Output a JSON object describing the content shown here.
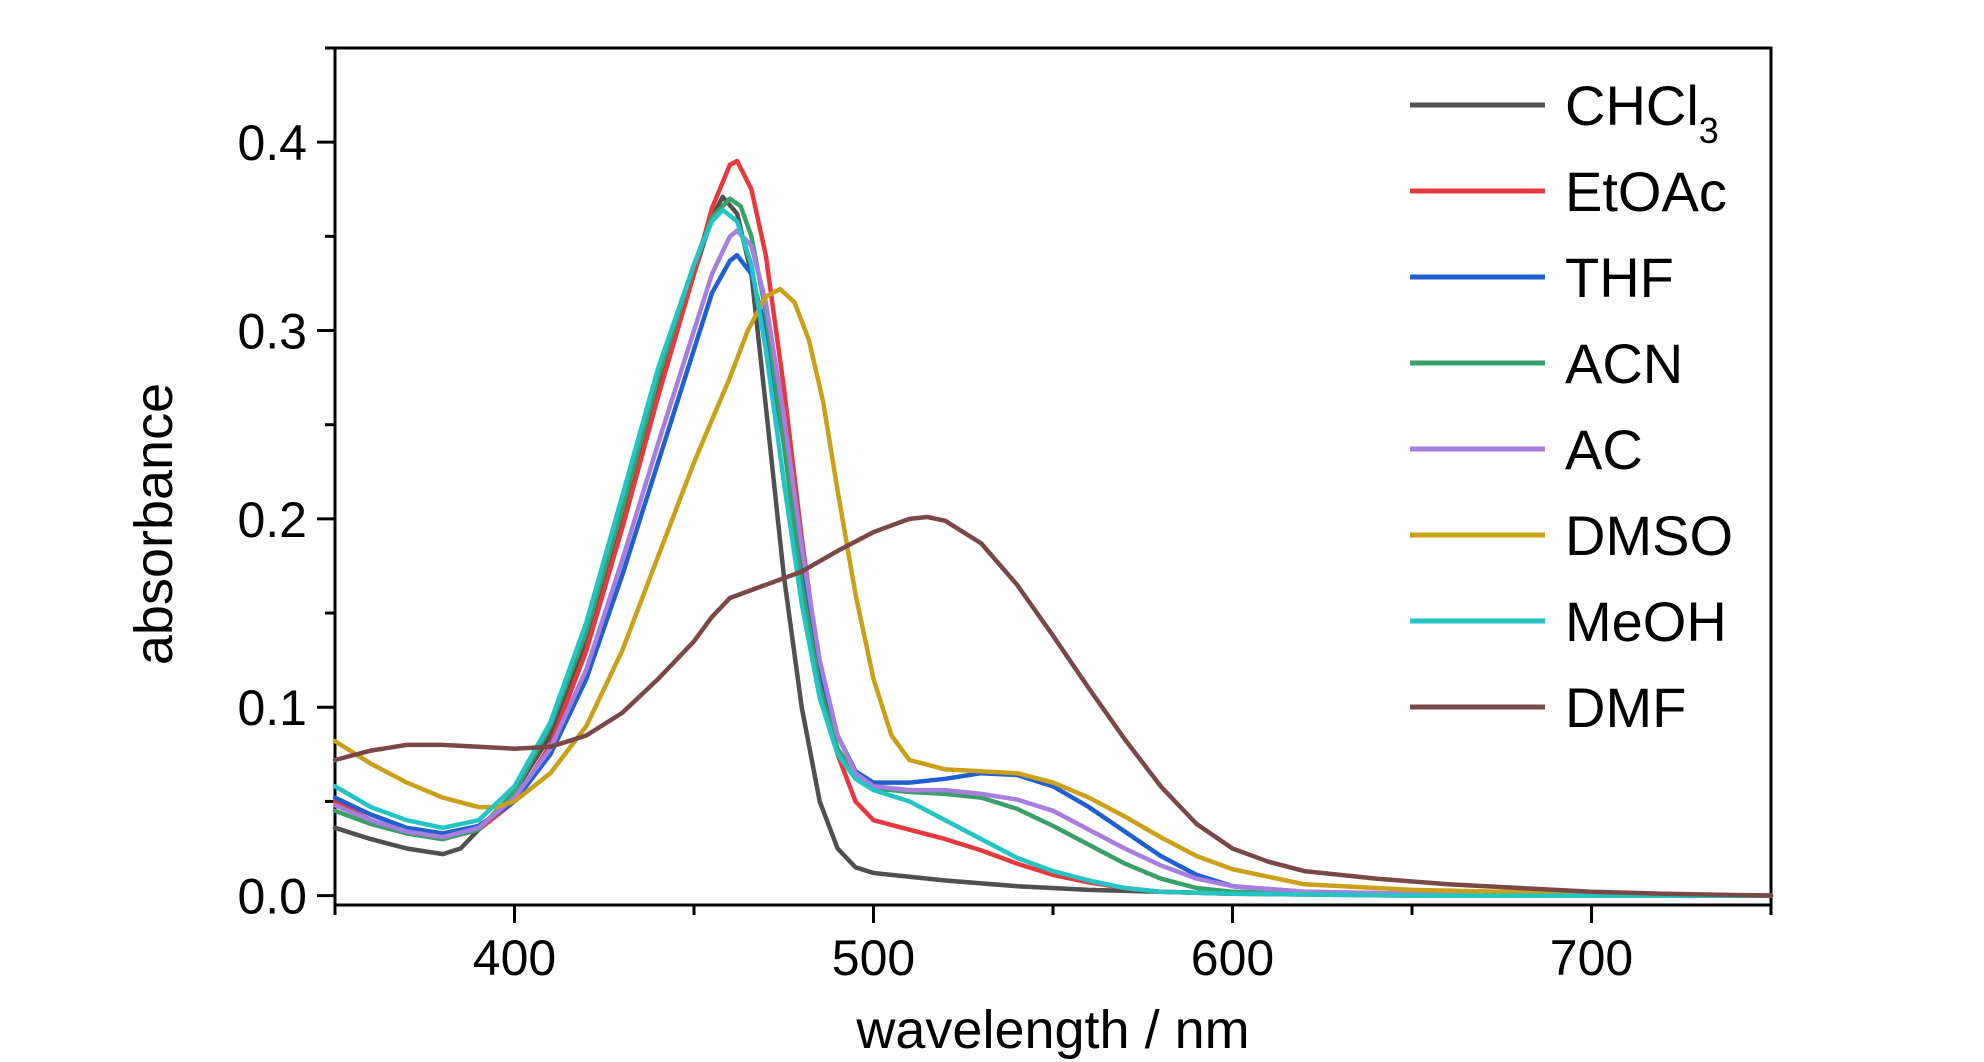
{
  "chart_data": {
    "type": "line",
    "title": "",
    "xlabel": "wavelength / nm",
    "ylabel": "absorbance",
    "xlim": [
      350,
      750
    ],
    "ylim": [
      -0.005,
      0.45
    ],
    "xticks": [
      400,
      500,
      600,
      700
    ],
    "xtick_labels": [
      "400",
      "500",
      "600",
      "700"
    ],
    "yticks": [
      0.0,
      0.1,
      0.2,
      0.3,
      0.4
    ],
    "ytick_labels": [
      "0.0",
      "0.1",
      "0.2",
      "0.3",
      "0.4"
    ],
    "grid": false,
    "legend_position": "top-right",
    "series": [
      {
        "name": "CHCl3",
        "label_main": "CHCl",
        "label_sub": "3",
        "color": "#505050",
        "points": [
          [
            350,
            0.036
          ],
          [
            360,
            0.03
          ],
          [
            370,
            0.025
          ],
          [
            380,
            0.022
          ],
          [
            385,
            0.025
          ],
          [
            390,
            0.035
          ],
          [
            400,
            0.055
          ],
          [
            410,
            0.085
          ],
          [
            420,
            0.135
          ],
          [
            430,
            0.2
          ],
          [
            440,
            0.27
          ],
          [
            450,
            0.33
          ],
          [
            455,
            0.36
          ],
          [
            458,
            0.371
          ],
          [
            462,
            0.362
          ],
          [
            466,
            0.33
          ],
          [
            470,
            0.26
          ],
          [
            475,
            0.17
          ],
          [
            480,
            0.1
          ],
          [
            485,
            0.05
          ],
          [
            490,
            0.025
          ],
          [
            495,
            0.015
          ],
          [
            500,
            0.012
          ],
          [
            510,
            0.01
          ],
          [
            520,
            0.008
          ],
          [
            540,
            0.005
          ],
          [
            560,
            0.003
          ],
          [
            580,
            0.002
          ],
          [
            600,
            0.001
          ],
          [
            650,
            0.0005
          ],
          [
            700,
            0.0
          ],
          [
            750,
            0.0
          ]
        ]
      },
      {
        "name": "EtOAc",
        "color": "#e8383d",
        "points": [
          [
            350,
            0.05
          ],
          [
            360,
            0.04
          ],
          [
            370,
            0.033
          ],
          [
            380,
            0.03
          ],
          [
            390,
            0.035
          ],
          [
            400,
            0.05
          ],
          [
            410,
            0.08
          ],
          [
            420,
            0.13
          ],
          [
            430,
            0.195
          ],
          [
            440,
            0.265
          ],
          [
            450,
            0.33
          ],
          [
            455,
            0.365
          ],
          [
            460,
            0.388
          ],
          [
            462,
            0.39
          ],
          [
            466,
            0.375
          ],
          [
            470,
            0.34
          ],
          [
            475,
            0.27
          ],
          [
            480,
            0.19
          ],
          [
            485,
            0.12
          ],
          [
            490,
            0.075
          ],
          [
            495,
            0.05
          ],
          [
            500,
            0.04
          ],
          [
            510,
            0.035
          ],
          [
            520,
            0.03
          ],
          [
            530,
            0.024
          ],
          [
            540,
            0.017
          ],
          [
            550,
            0.011
          ],
          [
            560,
            0.007
          ],
          [
            570,
            0.004
          ],
          [
            580,
            0.002
          ],
          [
            600,
            0.001
          ],
          [
            650,
            0.0
          ],
          [
            750,
            0.0
          ]
        ]
      },
      {
        "name": "THF",
        "color": "#1f5fcf",
        "points": [
          [
            350,
            0.052
          ],
          [
            360,
            0.043
          ],
          [
            370,
            0.036
          ],
          [
            380,
            0.033
          ],
          [
            390,
            0.037
          ],
          [
            400,
            0.05
          ],
          [
            410,
            0.075
          ],
          [
            420,
            0.115
          ],
          [
            430,
            0.17
          ],
          [
            440,
            0.23
          ],
          [
            450,
            0.29
          ],
          [
            455,
            0.32
          ],
          [
            460,
            0.337
          ],
          [
            462,
            0.34
          ],
          [
            466,
            0.33
          ],
          [
            470,
            0.3
          ],
          [
            475,
            0.24
          ],
          [
            480,
            0.175
          ],
          [
            485,
            0.12
          ],
          [
            490,
            0.085
          ],
          [
            495,
            0.066
          ],
          [
            500,
            0.06
          ],
          [
            510,
            0.06
          ],
          [
            520,
            0.062
          ],
          [
            530,
            0.065
          ],
          [
            540,
            0.064
          ],
          [
            550,
            0.058
          ],
          [
            560,
            0.047
          ],
          [
            570,
            0.034
          ],
          [
            580,
            0.021
          ],
          [
            590,
            0.011
          ],
          [
            600,
            0.005
          ],
          [
            620,
            0.002
          ],
          [
            650,
            0.001
          ],
          [
            700,
            0.0
          ],
          [
            750,
            0.0
          ]
        ]
      },
      {
        "name": "ACN",
        "color": "#3aa06a",
        "points": [
          [
            350,
            0.045
          ],
          [
            360,
            0.038
          ],
          [
            370,
            0.033
          ],
          [
            380,
            0.03
          ],
          [
            390,
            0.035
          ],
          [
            400,
            0.055
          ],
          [
            410,
            0.09
          ],
          [
            420,
            0.14
          ],
          [
            430,
            0.205
          ],
          [
            440,
            0.275
          ],
          [
            450,
            0.335
          ],
          [
            455,
            0.36
          ],
          [
            460,
            0.37
          ],
          [
            463,
            0.366
          ],
          [
            466,
            0.35
          ],
          [
            470,
            0.31
          ],
          [
            475,
            0.24
          ],
          [
            480,
            0.165
          ],
          [
            485,
            0.11
          ],
          [
            490,
            0.078
          ],
          [
            495,
            0.063
          ],
          [
            500,
            0.057
          ],
          [
            510,
            0.055
          ],
          [
            520,
            0.054
          ],
          [
            530,
            0.052
          ],
          [
            540,
            0.046
          ],
          [
            550,
            0.037
          ],
          [
            560,
            0.027
          ],
          [
            570,
            0.017
          ],
          [
            580,
            0.009
          ],
          [
            590,
            0.004
          ],
          [
            600,
            0.002
          ],
          [
            650,
            0.0
          ],
          [
            750,
            0.0
          ]
        ]
      },
      {
        "name": "AC",
        "color": "#a77ee0",
        "points": [
          [
            350,
            0.048
          ],
          [
            360,
            0.04
          ],
          [
            370,
            0.034
          ],
          [
            380,
            0.031
          ],
          [
            390,
            0.036
          ],
          [
            400,
            0.052
          ],
          [
            410,
            0.078
          ],
          [
            420,
            0.12
          ],
          [
            430,
            0.178
          ],
          [
            440,
            0.24
          ],
          [
            450,
            0.3
          ],
          [
            455,
            0.33
          ],
          [
            460,
            0.35
          ],
          [
            462,
            0.353
          ],
          [
            466,
            0.345
          ],
          [
            470,
            0.315
          ],
          [
            475,
            0.255
          ],
          [
            480,
            0.185
          ],
          [
            485,
            0.125
          ],
          [
            490,
            0.085
          ],
          [
            495,
            0.065
          ],
          [
            500,
            0.058
          ],
          [
            510,
            0.056
          ],
          [
            520,
            0.056
          ],
          [
            530,
            0.054
          ],
          [
            540,
            0.051
          ],
          [
            550,
            0.045
          ],
          [
            560,
            0.035
          ],
          [
            570,
            0.025
          ],
          [
            580,
            0.016
          ],
          [
            590,
            0.009
          ],
          [
            600,
            0.005
          ],
          [
            620,
            0.002
          ],
          [
            650,
            0.001
          ],
          [
            750,
            0.0
          ]
        ]
      },
      {
        "name": "DMSO",
        "color": "#c9a017",
        "points": [
          [
            350,
            0.082
          ],
          [
            360,
            0.07
          ],
          [
            370,
            0.06
          ],
          [
            380,
            0.052
          ],
          [
            390,
            0.047
          ],
          [
            395,
            0.047
          ],
          [
            400,
            0.05
          ],
          [
            410,
            0.065
          ],
          [
            420,
            0.09
          ],
          [
            430,
            0.13
          ],
          [
            440,
            0.18
          ],
          [
            450,
            0.23
          ],
          [
            460,
            0.275
          ],
          [
            465,
            0.3
          ],
          [
            470,
            0.318
          ],
          [
            474,
            0.322
          ],
          [
            478,
            0.315
          ],
          [
            482,
            0.295
          ],
          [
            486,
            0.262
          ],
          [
            490,
            0.215
          ],
          [
            495,
            0.16
          ],
          [
            500,
            0.115
          ],
          [
            505,
            0.085
          ],
          [
            510,
            0.072
          ],
          [
            520,
            0.067
          ],
          [
            530,
            0.066
          ],
          [
            540,
            0.065
          ],
          [
            550,
            0.06
          ],
          [
            560,
            0.052
          ],
          [
            570,
            0.042
          ],
          [
            580,
            0.031
          ],
          [
            590,
            0.021
          ],
          [
            600,
            0.014
          ],
          [
            620,
            0.006
          ],
          [
            650,
            0.003
          ],
          [
            700,
            0.001
          ],
          [
            750,
            0.0
          ]
        ]
      },
      {
        "name": "MeOH",
        "color": "#22c4c4",
        "points": [
          [
            350,
            0.058
          ],
          [
            360,
            0.047
          ],
          [
            370,
            0.04
          ],
          [
            380,
            0.036
          ],
          [
            390,
            0.04
          ],
          [
            400,
            0.058
          ],
          [
            410,
            0.092
          ],
          [
            420,
            0.145
          ],
          [
            430,
            0.212
          ],
          [
            440,
            0.28
          ],
          [
            450,
            0.335
          ],
          [
            455,
            0.358
          ],
          [
            458,
            0.364
          ],
          [
            462,
            0.358
          ],
          [
            466,
            0.335
          ],
          [
            470,
            0.29
          ],
          [
            475,
            0.22
          ],
          [
            480,
            0.155
          ],
          [
            485,
            0.105
          ],
          [
            490,
            0.075
          ],
          [
            495,
            0.062
          ],
          [
            500,
            0.056
          ],
          [
            510,
            0.05
          ],
          [
            520,
            0.04
          ],
          [
            530,
            0.03
          ],
          [
            540,
            0.02
          ],
          [
            550,
            0.013
          ],
          [
            560,
            0.008
          ],
          [
            570,
            0.004
          ],
          [
            580,
            0.002
          ],
          [
            600,
            0.001
          ],
          [
            650,
            0.0
          ],
          [
            750,
            0.0
          ]
        ]
      },
      {
        "name": "DMF",
        "color": "#7b4848",
        "points": [
          [
            350,
            0.072
          ],
          [
            360,
            0.077
          ],
          [
            370,
            0.08
          ],
          [
            380,
            0.08
          ],
          [
            390,
            0.079
          ],
          [
            400,
            0.078
          ],
          [
            410,
            0.079
          ],
          [
            420,
            0.085
          ],
          [
            430,
            0.097
          ],
          [
            440,
            0.115
          ],
          [
            450,
            0.135
          ],
          [
            455,
            0.148
          ],
          [
            460,
            0.158
          ],
          [
            470,
            0.165
          ],
          [
            480,
            0.172
          ],
          [
            490,
            0.183
          ],
          [
            500,
            0.193
          ],
          [
            510,
            0.2
          ],
          [
            515,
            0.201
          ],
          [
            520,
            0.199
          ],
          [
            530,
            0.187
          ],
          [
            540,
            0.165
          ],
          [
            550,
            0.138
          ],
          [
            560,
            0.11
          ],
          [
            570,
            0.083
          ],
          [
            580,
            0.058
          ],
          [
            590,
            0.038
          ],
          [
            600,
            0.025
          ],
          [
            610,
            0.018
          ],
          [
            620,
            0.013
          ],
          [
            640,
            0.009
          ],
          [
            660,
            0.006
          ],
          [
            680,
            0.004
          ],
          [
            700,
            0.002
          ],
          [
            720,
            0.001
          ],
          [
            750,
            0.0
          ]
        ]
      }
    ]
  }
}
